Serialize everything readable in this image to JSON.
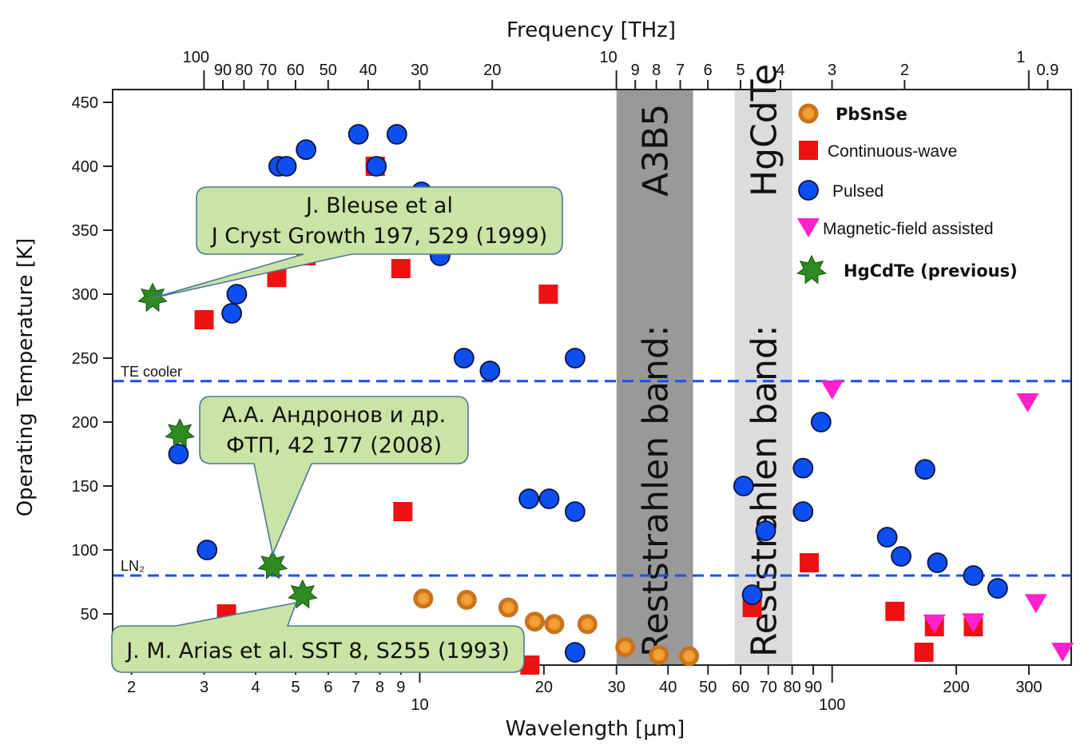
{
  "chart_data": {
    "type": "scatter",
    "xlabel": "Wavelength [μm]",
    "x2label": "Frequency [THz]",
    "ylabel": "Operating Temperature [K]",
    "xscale": "log",
    "xlim": [
      1.8,
      380
    ],
    "ylim": [
      10,
      460
    ],
    "yticks": [
      50,
      100,
      150,
      200,
      250,
      300,
      350,
      400,
      450
    ],
    "xticks_major": [
      10,
      100
    ],
    "xticks_minor": [
      2,
      3,
      4,
      5,
      6,
      7,
      8,
      9,
      20,
      30,
      40,
      50,
      60,
      70,
      80,
      90,
      200,
      300
    ],
    "top_ticks_major": [
      100,
      10,
      1
    ],
    "top_ticks_minor": [
      90,
      80,
      70,
      60,
      50,
      40,
      30,
      20,
      9,
      8,
      7,
      6,
      5,
      4,
      3,
      2,
      0.9
    ],
    "grid": false,
    "legend_position": "top-right",
    "bands": [
      {
        "x0": 30,
        "x1": 46,
        "color": "#999999",
        "label_main": "Reststrahlen  band:",
        "label_sub": "A3B5"
      },
      {
        "x0": 58,
        "x1": 80,
        "color": "#dcdcdc",
        "label_main": "Reststrahlen  band:",
        "label_sub": "HgCdTe"
      }
    ],
    "hlines": [
      {
        "y": 232,
        "label": "TE cooler"
      },
      {
        "y": 80,
        "label": "LN₂"
      }
    ],
    "series": [
      {
        "name": "PbSnSe",
        "marker": "ring",
        "color": "#c8741e",
        "points": [
          [
            10.2,
            62
          ],
          [
            13,
            61
          ],
          [
            16.4,
            55
          ],
          [
            19,
            44
          ],
          [
            21.2,
            42
          ],
          [
            25.5,
            42
          ],
          [
            31.5,
            24
          ],
          [
            38,
            18
          ],
          [
            45,
            17
          ]
        ]
      },
      {
        "name": "Continuous-wave",
        "marker": "square",
        "color": "#ee1111",
        "points": [
          [
            3,
            280
          ],
          [
            3.4,
            50
          ],
          [
            4.5,
            313
          ],
          [
            5.3,
            330
          ],
          [
            7.8,
            400
          ],
          [
            9,
            320
          ],
          [
            9.1,
            130
          ],
          [
            16.5,
            30
          ],
          [
            18.5,
            10
          ],
          [
            20.5,
            300
          ],
          [
            64,
            55
          ],
          [
            88,
            90
          ],
          [
            142,
            52
          ],
          [
            167,
            20
          ],
          [
            177,
            40
          ],
          [
            220,
            40
          ]
        ]
      },
      {
        "name": "Pulsed",
        "marker": "circle",
        "color": "#0c4ef0",
        "points": [
          [
            2.6,
            175
          ],
          [
            3.05,
            100
          ],
          [
            3.5,
            285
          ],
          [
            3.6,
            300
          ],
          [
            4.55,
            400
          ],
          [
            4.75,
            400
          ],
          [
            5.3,
            413
          ],
          [
            7.1,
            425
          ],
          [
            7.85,
            400
          ],
          [
            8.8,
            425
          ],
          [
            10.1,
            380
          ],
          [
            11.2,
            330
          ],
          [
            12.8,
            250
          ],
          [
            14.8,
            240
          ],
          [
            18.4,
            140
          ],
          [
            20.6,
            140
          ],
          [
            23.8,
            130
          ],
          [
            23.8,
            250
          ],
          [
            23.8,
            20
          ],
          [
            61,
            150
          ],
          [
            64,
            65
          ],
          [
            69,
            115
          ],
          [
            85,
            164
          ],
          [
            85,
            130
          ],
          [
            94,
            200
          ],
          [
            136,
            110
          ],
          [
            147,
            95
          ],
          [
            168,
            163
          ],
          [
            180,
            90
          ],
          [
            220,
            80
          ],
          [
            252,
            70
          ]
        ]
      },
      {
        "name": "Magnetic-field assisted",
        "marker": "triangle-down",
        "color": "#ff22cc",
        "points": [
          [
            100,
            225
          ],
          [
            177,
            42
          ],
          [
            220,
            43
          ],
          [
            298,
            215
          ],
          [
            312,
            58
          ],
          [
            362,
            20
          ]
        ]
      },
      {
        "name": "HgCdTe (previous)",
        "marker": "star",
        "color": "#2e8b22",
        "points": [
          [
            2.25,
            297
          ],
          [
            2.62,
            191
          ],
          [
            4.4,
            88
          ],
          [
            5.2,
            65
          ]
        ]
      }
    ]
  },
  "callouts": [
    {
      "line1": "J. Bleuse et al",
      "line2a": "J Cryst Growth 197",
      "line2b": ", 529 (1999)"
    },
    {
      "line1": "А.А. Андронов и др.",
      "line2a": "ФТП, 42",
      "line2b": " 177 (2008)"
    },
    {
      "line1a": "J. M. Arias et al. ",
      "line1b": "SST 8,",
      "line1c": " S255 (1993)"
    }
  ]
}
